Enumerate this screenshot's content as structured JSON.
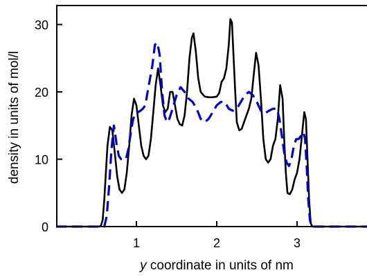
{
  "chart_data": {
    "type": "line",
    "title": "",
    "xlabel_italic": "y",
    "xlabel_rest": " coordinate in units of nm",
    "ylabel": "density in units of mol/l",
    "xlim": [
      0,
      3.9
    ],
    "ylim": [
      0,
      33
    ],
    "x_ticks": [
      1,
      2,
      3
    ],
    "x_tick_labels": [
      "1",
      "2",
      "3"
    ],
    "y_ticks": [
      0,
      10,
      20,
      30
    ],
    "y_tick_labels": [
      "0",
      "10",
      "20",
      "30"
    ],
    "grid": false,
    "legend": "none",
    "series": [
      {
        "color": "#000000",
        "style": "solid",
        "points": [
          [
            0.0,
            0.0
          ],
          [
            0.54,
            0.0
          ],
          [
            0.56,
            0.2
          ],
          [
            0.58,
            1.0
          ],
          [
            0.6,
            4.0
          ],
          [
            0.62,
            8.0
          ],
          [
            0.64,
            12.0
          ],
          [
            0.67,
            14.8
          ],
          [
            0.7,
            14.3
          ],
          [
            0.73,
            11.0
          ],
          [
            0.76,
            7.5
          ],
          [
            0.79,
            5.5
          ],
          [
            0.82,
            5.0
          ],
          [
            0.85,
            5.5
          ],
          [
            0.88,
            8.0
          ],
          [
            0.91,
            12.0
          ],
          [
            0.94,
            16.5
          ],
          [
            0.97,
            19.0
          ],
          [
            1.0,
            18.0
          ],
          [
            1.03,
            15.0
          ],
          [
            1.06,
            12.0
          ],
          [
            1.09,
            10.5
          ],
          [
            1.12,
            10.0
          ],
          [
            1.15,
            10.5
          ],
          [
            1.18,
            13.0
          ],
          [
            1.21,
            17.0
          ],
          [
            1.24,
            21.0
          ],
          [
            1.27,
            23.5
          ],
          [
            1.3,
            21.0
          ],
          [
            1.33,
            18.0
          ],
          [
            1.36,
            17.0
          ],
          [
            1.39,
            17.5
          ],
          [
            1.42,
            20.0
          ],
          [
            1.45,
            20.0
          ],
          [
            1.48,
            18.0
          ],
          [
            1.51,
            16.0
          ],
          [
            1.54,
            15.2
          ],
          [
            1.57,
            15.0
          ],
          [
            1.6,
            16.5
          ],
          [
            1.63,
            20.0
          ],
          [
            1.66,
            25.0
          ],
          [
            1.69,
            28.0
          ],
          [
            1.71,
            28.7
          ],
          [
            1.74,
            26.0
          ],
          [
            1.77,
            22.0
          ],
          [
            1.8,
            20.0
          ],
          [
            1.85,
            19.3
          ],
          [
            1.9,
            19.2
          ],
          [
            1.95,
            19.2
          ],
          [
            2.0,
            19.3
          ],
          [
            2.03,
            19.8
          ],
          [
            2.06,
            21.5
          ],
          [
            2.09,
            22.0
          ],
          [
            2.12,
            23.5
          ],
          [
            2.15,
            27.0
          ],
          [
            2.17,
            30.8
          ],
          [
            2.19,
            30.3
          ],
          [
            2.21,
            25.0
          ],
          [
            2.23,
            20.0
          ],
          [
            2.25,
            15.5
          ],
          [
            2.28,
            14.3
          ],
          [
            2.31,
            14.5
          ],
          [
            2.34,
            15.5
          ],
          [
            2.37,
            16.5
          ],
          [
            2.4,
            17.5
          ],
          [
            2.43,
            19.0
          ],
          [
            2.46,
            22.5
          ],
          [
            2.49,
            25.8
          ],
          [
            2.52,
            24.0
          ],
          [
            2.55,
            19.0
          ],
          [
            2.58,
            13.0
          ],
          [
            2.61,
            10.0
          ],
          [
            2.64,
            9.5
          ],
          [
            2.67,
            10.0
          ],
          [
            2.7,
            12.0
          ],
          [
            2.73,
            13.0
          ],
          [
            2.76,
            16.0
          ],
          [
            2.79,
            21.0
          ],
          [
            2.82,
            19.0
          ],
          [
            2.84,
            13.0
          ],
          [
            2.86,
            8.0
          ],
          [
            2.88,
            5.0
          ],
          [
            2.91,
            4.8
          ],
          [
            2.94,
            5.5
          ],
          [
            2.97,
            7.0
          ],
          [
            3.0,
            8.0
          ],
          [
            3.03,
            10.0
          ],
          [
            3.06,
            13.5
          ],
          [
            3.09,
            17.0
          ],
          [
            3.11,
            16.0
          ],
          [
            3.13,
            10.0
          ],
          [
            3.15,
            4.0
          ],
          [
            3.17,
            0.5
          ],
          [
            3.19,
            0.0
          ],
          [
            3.9,
            0.0
          ]
        ]
      },
      {
        "color": "#0000dd",
        "style": "dashed",
        "points": [
          [
            0.0,
            0.0
          ],
          [
            0.6,
            0.0
          ],
          [
            0.63,
            1.5
          ],
          [
            0.66,
            6.0
          ],
          [
            0.69,
            11.5
          ],
          [
            0.72,
            15.0
          ],
          [
            0.75,
            12.5
          ],
          [
            0.78,
            10.5
          ],
          [
            0.81,
            10.0
          ],
          [
            0.84,
            9.9
          ],
          [
            0.87,
            10.0
          ],
          [
            0.9,
            11.5
          ],
          [
            0.93,
            14.0
          ],
          [
            0.96,
            16.0
          ],
          [
            0.99,
            16.8
          ],
          [
            1.02,
            17.0
          ],
          [
            1.05,
            17.2
          ],
          [
            1.08,
            17.5
          ],
          [
            1.11,
            18.0
          ],
          [
            1.14,
            20.0
          ],
          [
            1.17,
            22.0
          ],
          [
            1.2,
            24.0
          ],
          [
            1.23,
            27.0
          ],
          [
            1.26,
            27.3
          ],
          [
            1.29,
            25.5
          ],
          [
            1.32,
            20.0
          ],
          [
            1.35,
            16.5
          ],
          [
            1.38,
            15.5
          ],
          [
            1.41,
            16.0
          ],
          [
            1.45,
            17.5
          ],
          [
            1.5,
            19.5
          ],
          [
            1.55,
            20.7
          ],
          [
            1.6,
            20.0
          ],
          [
            1.65,
            19.0
          ],
          [
            1.7,
            18.5
          ],
          [
            1.75,
            17.5
          ],
          [
            1.8,
            16.0
          ],
          [
            1.85,
            15.5
          ],
          [
            1.9,
            16.0
          ],
          [
            1.95,
            17.0
          ],
          [
            2.0,
            18.0
          ],
          [
            2.05,
            18.5
          ],
          [
            2.1,
            18.5
          ],
          [
            2.15,
            17.5
          ],
          [
            2.2,
            17.2
          ],
          [
            2.25,
            17.5
          ],
          [
            2.3,
            18.5
          ],
          [
            2.35,
            19.5
          ],
          [
            2.4,
            20.0
          ],
          [
            2.45,
            19.5
          ],
          [
            2.5,
            18.5
          ],
          [
            2.55,
            17.2
          ],
          [
            2.6,
            16.8
          ],
          [
            2.65,
            17.2
          ],
          [
            2.7,
            17.5
          ],
          [
            2.75,
            17.5
          ],
          [
            2.78,
            16.0
          ],
          [
            2.81,
            13.5
          ],
          [
            2.84,
            11.0
          ],
          [
            2.87,
            9.5
          ],
          [
            2.9,
            9.0
          ],
          [
            2.93,
            10.0
          ],
          [
            2.96,
            12.0
          ],
          [
            2.99,
            13.0
          ],
          [
            3.02,
            13.0
          ],
          [
            3.05,
            13.5
          ],
          [
            3.08,
            14.0
          ],
          [
            3.1,
            13.0
          ],
          [
            3.12,
            9.0
          ],
          [
            3.14,
            4.0
          ],
          [
            3.16,
            1.0
          ],
          [
            3.18,
            0.0
          ],
          [
            3.9,
            0.0
          ]
        ]
      }
    ]
  }
}
